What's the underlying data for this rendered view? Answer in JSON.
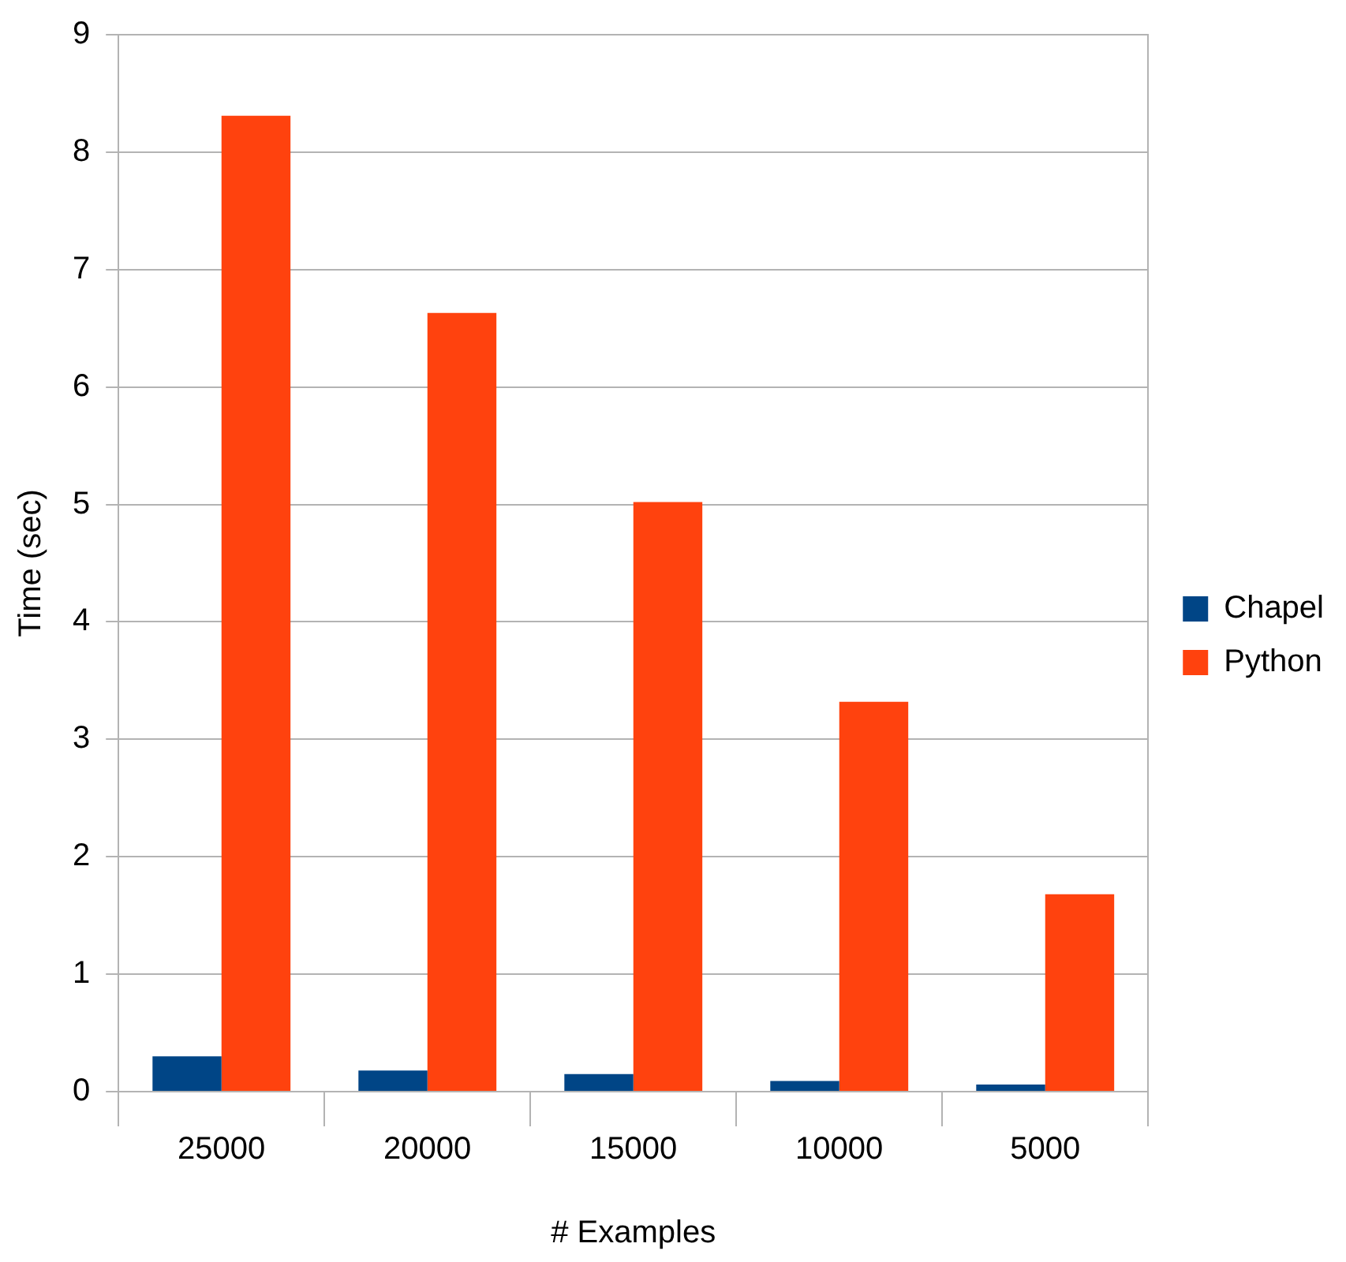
{
  "chart_data": {
    "type": "bar",
    "xlabel": "# Examples",
    "ylabel": "Time (sec)",
    "categories": [
      "25000",
      "20000",
      "15000",
      "10000",
      "5000"
    ],
    "series": [
      {
        "name": "Chapel",
        "color": "#004586",
        "values": [
          0.3,
          0.18,
          0.15,
          0.09,
          0.06
        ]
      },
      {
        "name": "Python",
        "color": "#ff420e",
        "values": [
          8.31,
          6.63,
          5.02,
          3.32,
          1.68
        ]
      }
    ],
    "ylim": [
      0,
      9
    ],
    "yticks": [
      0,
      1,
      2,
      3,
      4,
      5,
      6,
      7,
      8,
      9
    ],
    "grid": "y",
    "legend": "right"
  }
}
